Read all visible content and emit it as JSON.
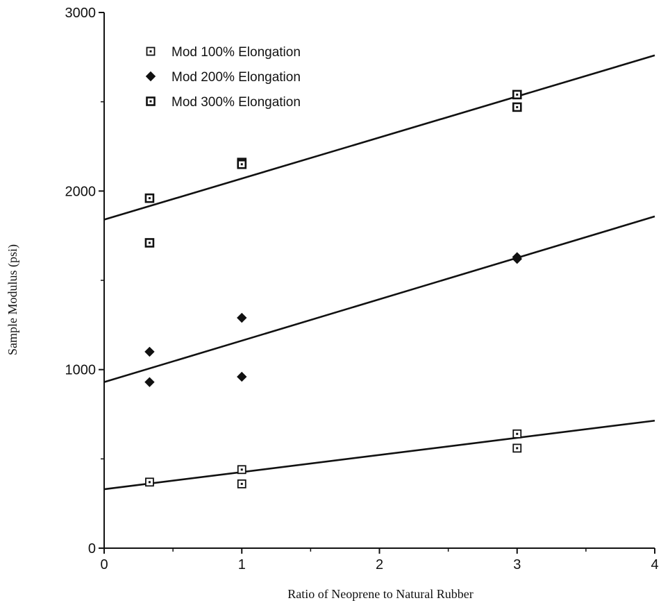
{
  "chart_data": {
    "type": "scatter",
    "title": "",
    "xlabel": "Ratio of Neoprene to Natural Rubber",
    "ylabel": "Sample Modulus (psi)",
    "xlim": [
      0,
      4
    ],
    "ylim": [
      0,
      3000
    ],
    "x_ticks": [
      0,
      1,
      2,
      3,
      4
    ],
    "y_ticks": [
      0,
      1000,
      2000,
      3000
    ],
    "x_tick_labels": [
      "0",
      "1",
      "2",
      "3",
      "4"
    ],
    "y_tick_labels": [
      "0",
      "1000",
      "2000",
      "3000"
    ],
    "grid": false,
    "legend_position": "top-left",
    "series": [
      {
        "name": "Mod 100% Elongation",
        "marker": "open-square",
        "points": [
          [
            0.33,
            370
          ],
          [
            1,
            440
          ],
          [
            1,
            360
          ],
          [
            3,
            640
          ],
          [
            3,
            560
          ]
        ],
        "trend": {
          "intercept": 330,
          "slope": 96
        }
      },
      {
        "name": "Mod 200% Elongation",
        "marker": "filled-diamond",
        "points": [
          [
            0.33,
            1100
          ],
          [
            0.33,
            930
          ],
          [
            1,
            1290
          ],
          [
            1,
            960
          ],
          [
            3,
            1630
          ],
          [
            3,
            1620
          ]
        ],
        "trend": {
          "intercept": 930,
          "slope": 232
        }
      },
      {
        "name": "Mod 300% Elongation",
        "marker": "square",
        "points": [
          [
            0.33,
            1960
          ],
          [
            0.33,
            1710
          ],
          [
            1,
            2160
          ],
          [
            1,
            2150
          ],
          [
            3,
            2540
          ],
          [
            3,
            2470
          ]
        ],
        "trend": {
          "intercept": 1840,
          "slope": 230
        }
      }
    ]
  }
}
